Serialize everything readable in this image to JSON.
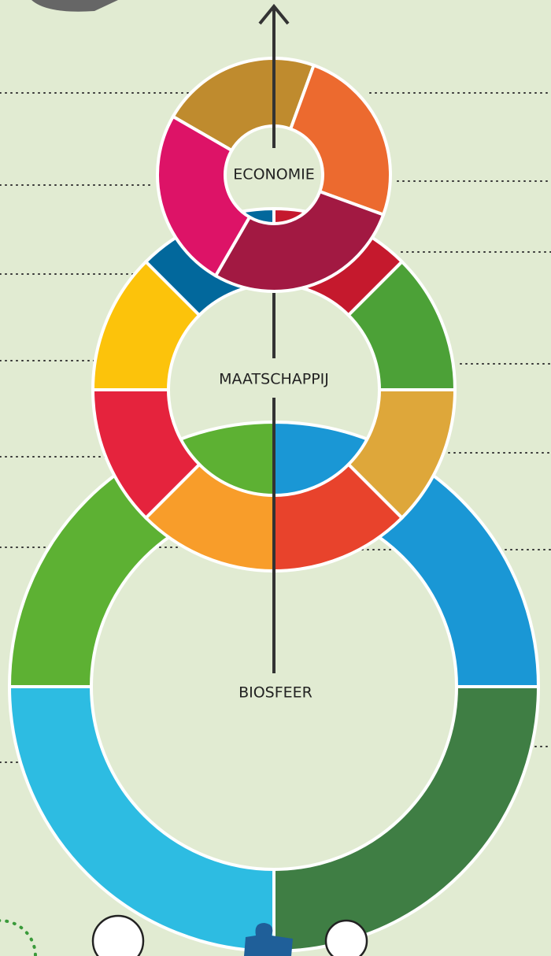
{
  "labels": {
    "economy": "ECONOMIE",
    "society": "MAATSCHAPPIJ",
    "biosphere": "BIOSFEER"
  }
}
